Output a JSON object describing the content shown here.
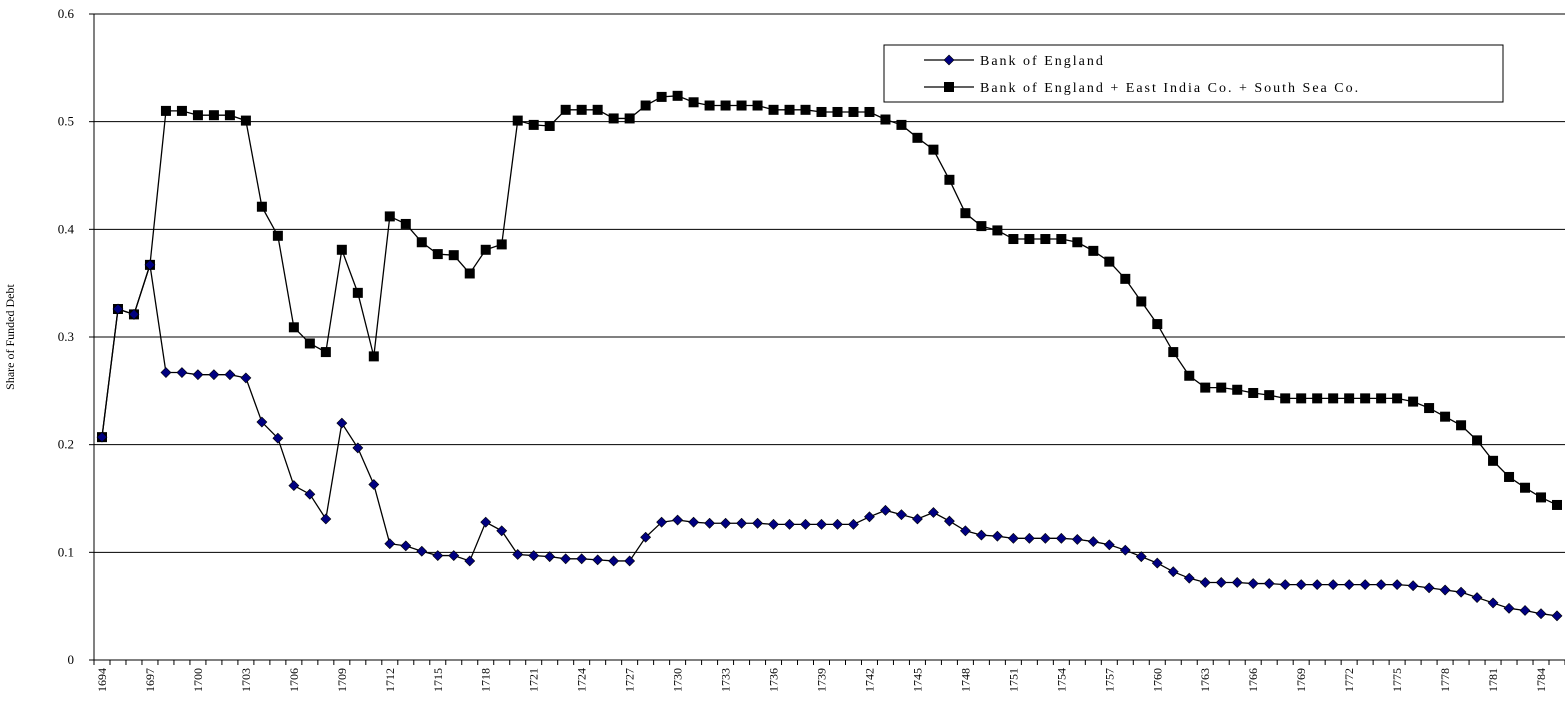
{
  "chart_data": {
    "type": "line",
    "y_label": "Share of Funded Debt",
    "categories": [
      "1694",
      null,
      null,
      "1697",
      null,
      null,
      "1700",
      null,
      null,
      "1703",
      null,
      null,
      "1706",
      null,
      null,
      "1709",
      null,
      null,
      "1712",
      null,
      null,
      "1715",
      null,
      null,
      "1718",
      null,
      null,
      "1721",
      null,
      null,
      "1724",
      null,
      null,
      "1727",
      null,
      null,
      "1730",
      null,
      null,
      "1733",
      null,
      null,
      "1736",
      null,
      null,
      "1739",
      null,
      null,
      "1742",
      null,
      null,
      "1745",
      null,
      null,
      "1748",
      null,
      null,
      "1751",
      null,
      null,
      "1754",
      null,
      null,
      "1757",
      null,
      null,
      "1760",
      null,
      null,
      "1763",
      null,
      null,
      "1766",
      null,
      null,
      "1769",
      null,
      null,
      "1772",
      null,
      null,
      "1775",
      null,
      null,
      "1778",
      null,
      null,
      "1781",
      null,
      null,
      "1784",
      null
    ],
    "series": [
      {
        "name": "Bank of England",
        "color": "#000080",
        "marker": "diamond",
        "values": [
          0.207,
          0.326,
          0.321,
          0.367,
          0.267,
          0.267,
          0.265,
          0.265,
          0.265,
          0.262,
          0.221,
          0.206,
          0.162,
          0.154,
          0.131,
          0.22,
          0.197,
          0.163,
          0.108,
          0.106,
          0.101,
          0.097,
          0.097,
          0.092,
          0.128,
          0.12,
          0.098,
          0.097,
          0.096,
          0.094,
          0.094,
          0.093,
          0.092,
          0.092,
          0.114,
          0.128,
          0.13,
          0.128,
          0.127,
          0.127,
          0.127,
          0.127,
          0.126,
          0.126,
          0.126,
          0.126,
          0.126,
          0.126,
          0.133,
          0.139,
          0.135,
          0.131,
          0.137,
          0.129,
          0.12,
          0.116,
          0.115,
          0.113,
          0.113,
          0.113,
          0.113,
          0.112,
          0.11,
          0.107,
          0.102,
          0.096,
          0.09,
          0.082,
          0.076,
          0.072,
          0.072,
          0.072,
          0.071,
          0.071,
          0.07,
          0.07,
          0.07,
          0.07,
          0.07,
          0.07,
          0.07,
          0.07,
          0.069,
          0.067,
          0.065,
          0.063,
          0.058,
          0.053,
          0.048,
          0.046,
          0.043,
          0.041
        ]
      },
      {
        "name": "Bank of England + East India Co. + South Sea Co.",
        "color": "#000000",
        "marker": "square",
        "values": [
          0.207,
          0.326,
          0.321,
          0.367,
          0.51,
          0.51,
          0.506,
          0.506,
          0.506,
          0.501,
          0.421,
          0.394,
          0.309,
          0.294,
          0.286,
          0.381,
          0.341,
          0.282,
          0.412,
          0.405,
          0.388,
          0.377,
          0.376,
          0.359,
          0.381,
          0.386,
          0.501,
          0.497,
          0.496,
          0.511,
          0.511,
          0.511,
          0.503,
          0.503,
          0.515,
          0.523,
          0.524,
          0.518,
          0.515,
          0.515,
          0.515,
          0.515,
          0.511,
          0.511,
          0.511,
          0.509,
          0.509,
          0.509,
          0.509,
          0.502,
          0.497,
          0.485,
          0.474,
          0.446,
          0.415,
          0.403,
          0.399,
          0.391,
          0.391,
          0.391,
          0.391,
          0.388,
          0.38,
          0.37,
          0.354,
          0.333,
          0.312,
          0.286,
          0.264,
          0.253,
          0.253,
          0.251,
          0.248,
          0.246,
          0.243,
          0.243,
          0.243,
          0.243,
          0.243,
          0.243,
          0.243,
          0.243,
          0.24,
          0.234,
          0.226,
          0.218,
          0.204,
          0.185,
          0.17,
          0.16,
          0.151,
          0.144
        ]
      }
    ],
    "ylim": [
      0,
      0.6
    ],
    "yticks": [
      0,
      0.1,
      0.2,
      0.3,
      0.4,
      0.5,
      0.6
    ],
    "grid": true,
    "legend": "top-right"
  }
}
